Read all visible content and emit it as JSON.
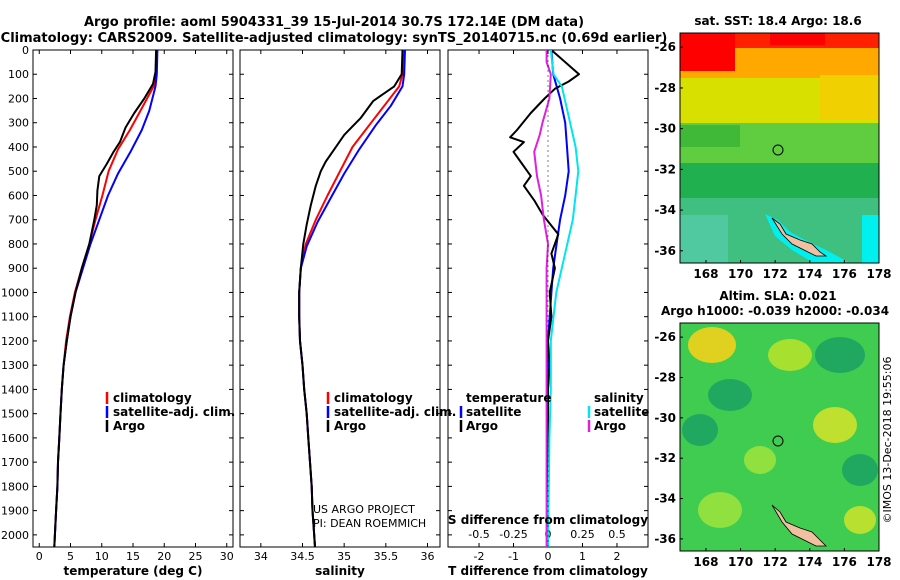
{
  "title_line1": "Argo profile: aoml 5904331_39 15-Jul-2014 30.7S 172.14E (DM data)",
  "title_line2": "Climatology: CARS2009. Satellite-adjusted climatology: synTS_20140715.nc (0.69d earlier)",
  "colors": {
    "climatology": "#ff0000",
    "satellite": "#0000ff",
    "argo": "#000000",
    "sat_salinity": "#00e5ee",
    "argo_salinity": "#e020e0"
  },
  "legend1": {
    "climatology": "climatology",
    "satellite": "satellite-adj. clim.",
    "argo": "Argo"
  },
  "legend3": {
    "temperature": "temperature",
    "salinity": "salinity",
    "satellite": "satellite",
    "argo": "Argo"
  },
  "project_line1": "US ARGO PROJECT",
  "project_line2": "PI: DEAN ROEMMICH",
  "map1_title": "sat. SST: 18.4 Argo: 18.6",
  "map2_title_line1": "Altim. SLA: 0.021",
  "map2_title_line2": "Argo h1000: -0.039 h2000: -0.034",
  "credit": "©IMOS 13-Dec-2018 19:55:06",
  "chart_data": [
    {
      "type": "line",
      "xlabel": "temperature (deg C)",
      "xlim": [
        -1,
        31
      ],
      "x_ticks": [
        0,
        5,
        10,
        15,
        20,
        25,
        30
      ],
      "ylim": [
        2050,
        0
      ],
      "y_ticks": [
        0,
        100,
        200,
        300,
        400,
        500,
        600,
        700,
        800,
        900,
        1000,
        1100,
        1200,
        1300,
        1400,
        1500,
        1600,
        1700,
        1800,
        1900,
        2000
      ],
      "series": [
        {
          "name": "climatology",
          "points": [
            [
              18.8,
              0
            ],
            [
              18.7,
              100
            ],
            [
              18.3,
              150
            ],
            [
              16.2,
              250
            ],
            [
              14.5,
              330
            ],
            [
              12.6,
              410
            ],
            [
              11.1,
              500
            ],
            [
              10.1,
              600
            ],
            [
              9.0,
              700
            ],
            [
              8.0,
              800
            ],
            [
              6.8,
              900
            ],
            [
              5.7,
              1000
            ],
            [
              4.9,
              1100
            ],
            [
              4.3,
              1200
            ],
            [
              3.9,
              1300
            ],
            [
              3.6,
              1400
            ],
            [
              3.4,
              1500
            ],
            [
              3.2,
              1600
            ],
            [
              3.0,
              1700
            ],
            [
              2.9,
              1800
            ],
            [
              2.7,
              1900
            ],
            [
              2.5,
              2000
            ],
            [
              2.4,
              2050
            ]
          ]
        },
        {
          "name": "satellite-adj. clim.",
          "points": [
            [
              18.9,
              0
            ],
            [
              18.8,
              100
            ],
            [
              18.6,
              150
            ],
            [
              17.6,
              250
            ],
            [
              16.4,
              330
            ],
            [
              14.6,
              420
            ],
            [
              12.6,
              510
            ],
            [
              11.0,
              600
            ],
            [
              9.6,
              700
            ],
            [
              8.2,
              800
            ],
            [
              7.0,
              900
            ],
            [
              5.8,
              1000
            ],
            [
              5.0,
              1100
            ],
            [
              4.4,
              1200
            ],
            [
              3.9,
              1300
            ],
            [
              3.6,
              1400
            ],
            [
              3.4,
              1500
            ],
            [
              3.2,
              1600
            ],
            [
              3.0,
              1700
            ],
            [
              2.9,
              1800
            ],
            [
              2.7,
              1900
            ],
            [
              2.5,
              2000
            ],
            [
              2.4,
              2050
            ]
          ]
        },
        {
          "name": "Argo",
          "points": [
            [
              18.7,
              0
            ],
            [
              18.6,
              90
            ],
            [
              18.2,
              140
            ],
            [
              16.8,
              200
            ],
            [
              15.2,
              260
            ],
            [
              13.8,
              320
            ],
            [
              12.9,
              380
            ],
            [
              11.9,
              420
            ],
            [
              10.8,
              470
            ],
            [
              9.6,
              520
            ],
            [
              9.3,
              580
            ],
            [
              9.2,
              640
            ],
            [
              8.8,
              700
            ],
            [
              8.0,
              800
            ],
            [
              6.8,
              900
            ],
            [
              5.8,
              1000
            ],
            [
              5.0,
              1100
            ],
            [
              4.4,
              1200
            ],
            [
              3.9,
              1300
            ],
            [
              3.6,
              1400
            ],
            [
              3.4,
              1500
            ],
            [
              3.2,
              1600
            ],
            [
              3.0,
              1700
            ],
            [
              2.9,
              1800
            ],
            [
              2.7,
              1900
            ],
            [
              2.5,
              2000
            ],
            [
              2.4,
              2050
            ]
          ]
        }
      ]
    },
    {
      "type": "line",
      "xlabel": "salinity",
      "xlim": [
        33.75,
        36.15
      ],
      "x_ticks": [
        34,
        34.5,
        35,
        35.5,
        36
      ],
      "ylim": [
        2050,
        0
      ],
      "series": [
        {
          "name": "climatology",
          "points": [
            [
              35.72,
              0
            ],
            [
              35.7,
              100
            ],
            [
              35.66,
              150
            ],
            [
              35.48,
              230
            ],
            [
              35.3,
              310
            ],
            [
              35.1,
              400
            ],
            [
              34.95,
              500
            ],
            [
              34.8,
              600
            ],
            [
              34.66,
              700
            ],
            [
              34.54,
              800
            ],
            [
              34.48,
              900
            ],
            [
              34.46,
              1000
            ],
            [
              34.46,
              1100
            ],
            [
              34.47,
              1200
            ],
            [
              34.5,
              1300
            ],
            [
              34.52,
              1400
            ],
            [
              34.55,
              1500
            ],
            [
              34.57,
              1600
            ],
            [
              34.59,
              1700
            ],
            [
              34.61,
              1800
            ],
            [
              34.62,
              1900
            ],
            [
              34.64,
              2000
            ],
            [
              34.65,
              2050
            ]
          ]
        },
        {
          "name": "satellite-adj. clim.",
          "points": [
            [
              35.73,
              0
            ],
            [
              35.72,
              100
            ],
            [
              35.7,
              150
            ],
            [
              35.56,
              230
            ],
            [
              35.38,
              310
            ],
            [
              35.18,
              410
            ],
            [
              35.0,
              510
            ],
            [
              34.84,
              610
            ],
            [
              34.68,
              710
            ],
            [
              34.55,
              810
            ],
            [
              34.48,
              900
            ],
            [
              34.46,
              1000
            ],
            [
              34.46,
              1100
            ],
            [
              34.47,
              1200
            ],
            [
              34.5,
              1300
            ],
            [
              34.52,
              1400
            ],
            [
              34.55,
              1500
            ],
            [
              34.57,
              1600
            ],
            [
              34.59,
              1700
            ],
            [
              34.61,
              1800
            ],
            [
              34.62,
              1900
            ],
            [
              34.64,
              2000
            ],
            [
              34.65,
              2050
            ]
          ]
        },
        {
          "name": "Argo",
          "points": [
            [
              35.7,
              0
            ],
            [
              35.69,
              100
            ],
            [
              35.6,
              150
            ],
            [
              35.35,
              210
            ],
            [
              35.2,
              280
            ],
            [
              35.0,
              350
            ],
            [
              34.88,
              410
            ],
            [
              34.78,
              460
            ],
            [
              34.72,
              500
            ],
            [
              34.66,
              560
            ],
            [
              34.6,
              640
            ],
            [
              34.55,
              720
            ],
            [
              34.51,
              800
            ],
            [
              34.48,
              900
            ],
            [
              34.46,
              1000
            ],
            [
              34.46,
              1100
            ],
            [
              34.47,
              1200
            ],
            [
              34.5,
              1300
            ],
            [
              34.52,
              1400
            ],
            [
              34.55,
              1500
            ],
            [
              34.57,
              1600
            ],
            [
              34.59,
              1700
            ],
            [
              34.61,
              1800
            ],
            [
              34.62,
              1900
            ],
            [
              34.64,
              2000
            ],
            [
              34.65,
              2050
            ]
          ]
        }
      ]
    },
    {
      "type": "line",
      "xlabel": "T difference from climatology",
      "xlabel_top": "S difference from climatology",
      "xlim": [
        -2.9,
        2.9
      ],
      "x_ticks": [
        -2,
        -1,
        0,
        1,
        2
      ],
      "x_ticks_top_labels": [
        "-0.5",
        "-0.25",
        "0",
        "0.25",
        "0.5"
      ],
      "ylim": [
        2050,
        0
      ],
      "series": [
        {
          "name": "temperature satellite",
          "points": [
            [
              0.1,
              0
            ],
            [
              0.15,
              100
            ],
            [
              0.35,
              200
            ],
            [
              0.5,
              300
            ],
            [
              0.55,
              400
            ],
            [
              0.6,
              500
            ],
            [
              0.5,
              600
            ],
            [
              0.35,
              700
            ],
            [
              0.25,
              800
            ],
            [
              0.15,
              900
            ],
            [
              0.1,
              1000
            ],
            [
              0.05,
              1100
            ],
            [
              0,
              1200
            ],
            [
              0,
              1400
            ],
            [
              0,
              1600
            ],
            [
              0,
              1800
            ],
            [
              0,
              2050
            ]
          ]
        },
        {
          "name": "temperature Argo",
          "points": [
            [
              0.1,
              0
            ],
            [
              0.5,
              50
            ],
            [
              0.9,
              100
            ],
            [
              0.6,
              130
            ],
            [
              0.2,
              160
            ],
            [
              -0.1,
              200
            ],
            [
              -0.5,
              260
            ],
            [
              -0.9,
              330
            ],
            [
              -1.1,
              360
            ],
            [
              -0.7,
              380
            ],
            [
              -1.0,
              420
            ],
            [
              -0.8,
              460
            ],
            [
              -0.5,
              520
            ],
            [
              -0.7,
              560
            ],
            [
              -0.4,
              620
            ],
            [
              -0.15,
              680
            ],
            [
              0.3,
              760
            ],
            [
              0.1,
              840
            ],
            [
              0.2,
              900
            ],
            [
              0.05,
              1000
            ],
            [
              0.1,
              1100
            ],
            [
              0,
              1200
            ],
            [
              0.05,
              1300
            ],
            [
              0,
              1400
            ],
            [
              0,
              1600
            ],
            [
              0,
              1800
            ],
            [
              0,
              2050
            ]
          ]
        },
        {
          "name": "salinity satellite",
          "points": [
            [
              0.02,
              0
            ],
            [
              0.04,
              100
            ],
            [
              0.1,
              150
            ],
            [
              0.12,
              200
            ],
            [
              0.16,
              300
            ],
            [
              0.2,
              400
            ],
            [
              0.22,
              500
            ],
            [
              0.2,
              600
            ],
            [
              0.18,
              700
            ],
            [
              0.14,
              800
            ],
            [
              0.1,
              900
            ],
            [
              0.06,
              1000
            ],
            [
              0.04,
              1100
            ],
            [
              0.02,
              1200
            ],
            [
              0.02,
              1400
            ],
            [
              0.01,
              1600
            ],
            [
              0,
              2050
            ]
          ]
        },
        {
          "name": "salinity Argo",
          "points": [
            [
              -0.01,
              0
            ],
            [
              -0.01,
              50
            ],
            [
              0.02,
              100
            ],
            [
              0.01,
              200
            ],
            [
              -0.04,
              300
            ],
            [
              -0.06,
              350
            ],
            [
              -0.1,
              420
            ],
            [
              -0.09,
              470
            ],
            [
              -0.08,
              520
            ],
            [
              -0.05,
              600
            ],
            [
              -0.03,
              700
            ],
            [
              0,
              800
            ],
            [
              -0.01,
              900
            ],
            [
              -0.01,
              1000
            ],
            [
              -0.01,
              1100
            ],
            [
              -0.01,
              1200
            ],
            [
              -0.01,
              1400
            ],
            [
              -0.01,
              1600
            ],
            [
              -0.01,
              2050
            ]
          ]
        }
      ]
    },
    {
      "type": "heatmap",
      "title": "sat. SST: 18.4 Argo: 18.6",
      "xlim": [
        166.5,
        178
      ],
      "ylim": [
        -36.6,
        -25.3
      ],
      "x_ticks": [
        168,
        170,
        172,
        174,
        176,
        178
      ],
      "y_ticks": [
        -26,
        -28,
        -30,
        -32,
        -34,
        -36
      ],
      "argo_position": [
        172.14,
        -30.7
      ]
    },
    {
      "type": "heatmap",
      "title": "Altim. SLA: 0.021",
      "subtitle": "Argo h1000: -0.039 h2000: -0.034",
      "xlim": [
        166.5,
        178
      ],
      "ylim": [
        -36.6,
        -25.3
      ],
      "x_ticks": [
        168,
        170,
        172,
        174,
        176,
        178
      ],
      "y_ticks": [
        -26,
        -28,
        -30,
        -32,
        -34,
        -36
      ],
      "argo_position": [
        172.14,
        -30.7
      ]
    }
  ]
}
